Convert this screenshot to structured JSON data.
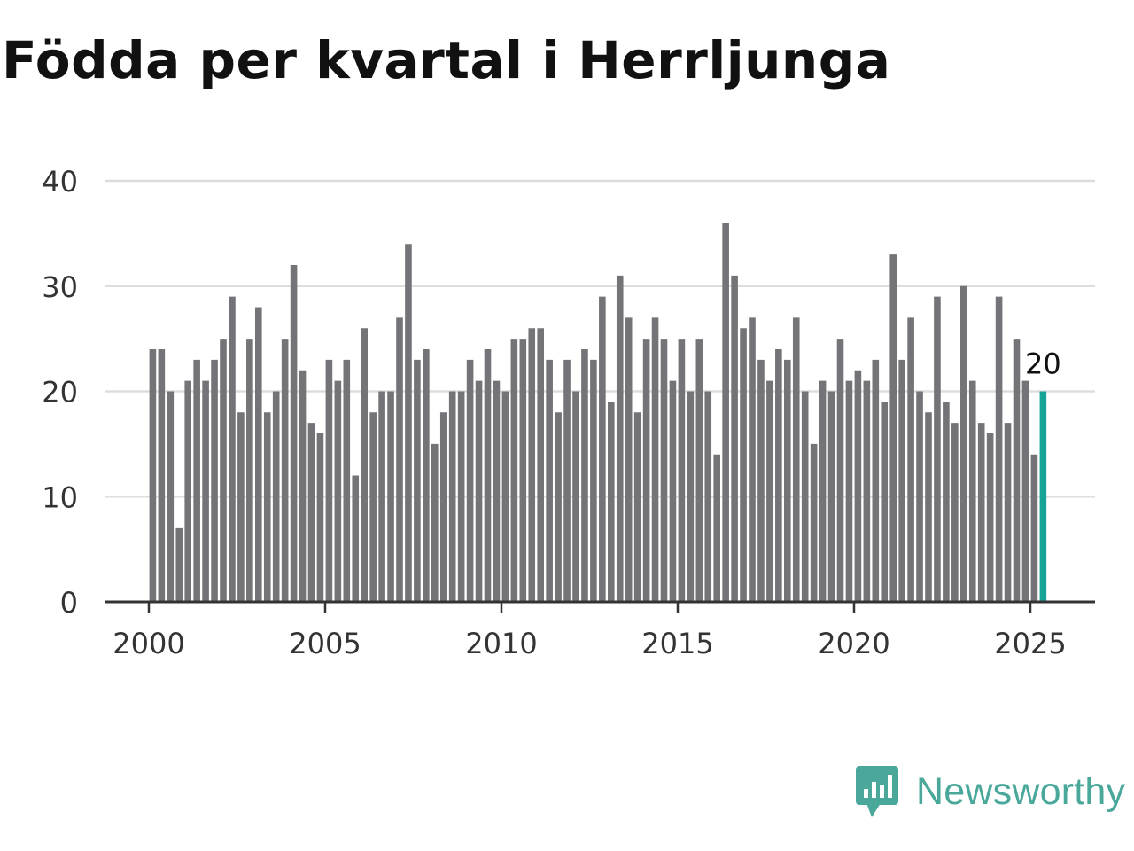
{
  "title": "Födda per kvartal i Herrljunga",
  "brand": "Newsworthy",
  "colors": {
    "bar": "#747377",
    "highlight": "#16a497",
    "grid": "#dddddd",
    "axis": "#333333",
    "brand": "#4aa89b"
  },
  "chart_data": {
    "type": "bar",
    "title": "Födda per kvartal i Herrljunga",
    "xlabel": "",
    "ylabel": "",
    "ylim": [
      0,
      40
    ],
    "yticks": [
      0,
      10,
      20,
      30,
      40
    ],
    "xticks": [
      2000,
      2005,
      2010,
      2015,
      2020,
      2025
    ],
    "grid": true,
    "start": "2000 Q1",
    "values": [
      24,
      24,
      20,
      7,
      21,
      23,
      21,
      23,
      25,
      29,
      18,
      25,
      28,
      18,
      20,
      25,
      32,
      22,
      17,
      16,
      23,
      21,
      23,
      12,
      26,
      18,
      20,
      20,
      27,
      34,
      23,
      24,
      15,
      18,
      20,
      20,
      23,
      21,
      24,
      21,
      20,
      25,
      25,
      26,
      26,
      23,
      18,
      23,
      20,
      24,
      23,
      29,
      19,
      31,
      27,
      18,
      25,
      27,
      25,
      21,
      25,
      20,
      25,
      20,
      14,
      36,
      31,
      26,
      27,
      23,
      21,
      24,
      23,
      27,
      20,
      15,
      21,
      20,
      25,
      21,
      22,
      21,
      23,
      19,
      33,
      23,
      27,
      20,
      18,
      29,
      19,
      17,
      30,
      21,
      17,
      16,
      29,
      17,
      25,
      21,
      14,
      20
    ],
    "highlight_last": true,
    "last_label": "20"
  }
}
